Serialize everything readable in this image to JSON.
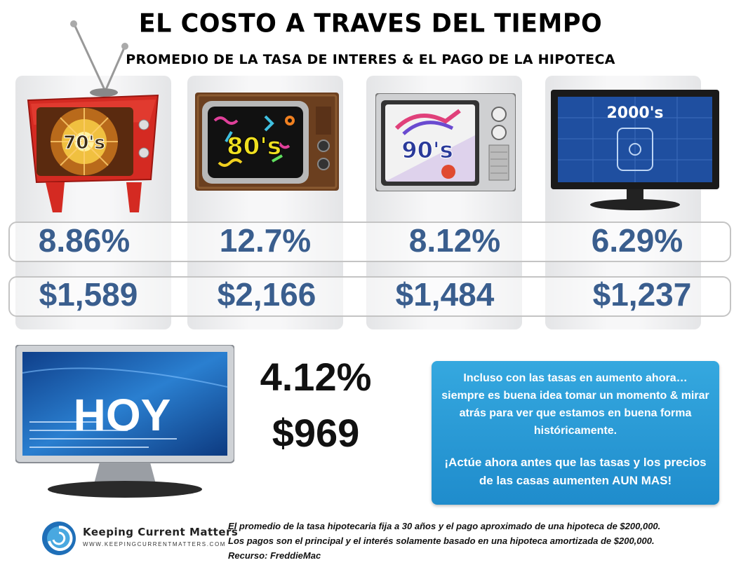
{
  "title": "EL COSTO A TRAVES DEL TIEMPO",
  "subtitle": "PROMEDIO DE LA TASA DE INTERES & EL PAGO DE LA HIPOTECA",
  "decades": [
    {
      "label": "70's",
      "rate": "8.86%",
      "payment": "$1,589"
    },
    {
      "label": "80's",
      "rate": "12.7%",
      "payment": "$2,166"
    },
    {
      "label": "90's",
      "rate": "8.12%",
      "payment": "$1,484"
    },
    {
      "label": "2000's",
      "rate": "6.29%",
      "payment": "$1,237"
    }
  ],
  "today": {
    "label": "HOY",
    "rate": "4.12%",
    "payment": "$969"
  },
  "message": {
    "paragraph1": "Incluso con las tasas en aumento ahora… siempre es buena idea tomar un momento & mirar atrás para ver que estamos en buena forma históricamente.",
    "paragraph2": "¡Actúe ahora antes que las tasas y los precios de las casas aumenten AUN MAS!"
  },
  "footnote": {
    "line1": "El promedio de la tasa hipotecaria fija a 30 años y el pago aproximado de una hipoteca de $200,000.",
    "line2": "Los pagos son el principal y el interés solamente basado en una hipoteca amortizada de $200,000.",
    "line3": "Recurso: FreddieMac"
  },
  "brand": {
    "name": "Keeping Current Matters",
    "url": "WWW.KEEPINGCURRENTMATTERS.COM"
  },
  "colors": {
    "value_blue": "#3a5e8e",
    "message_blue": "#2a9bd7",
    "tv_red": "#d42a22",
    "wood": "#6b3f1f"
  }
}
